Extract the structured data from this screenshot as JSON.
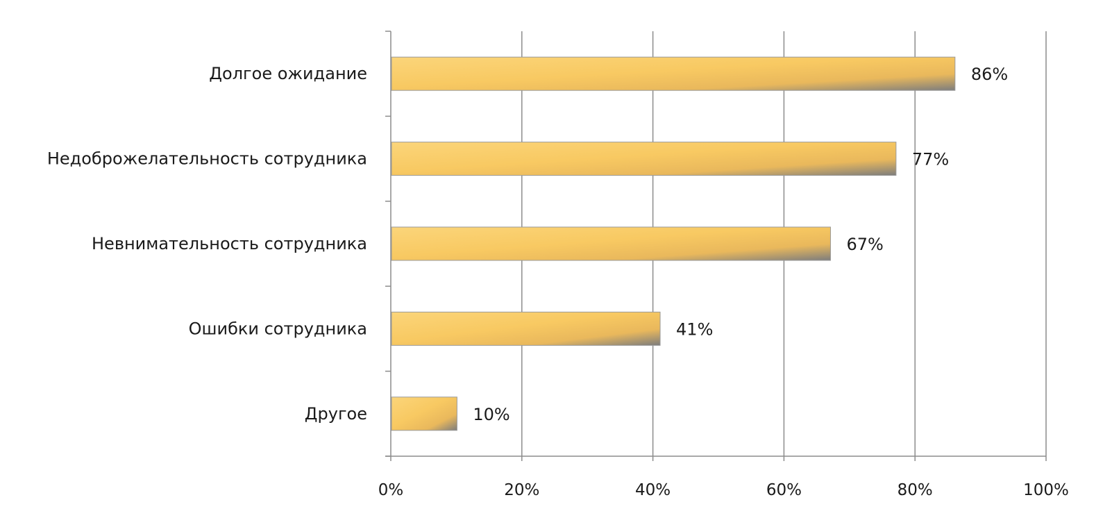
{
  "chart_data": {
    "type": "bar",
    "orientation": "horizontal",
    "categories": [
      "Долгое ожидание",
      "Недоброжелательность  сотрудника",
      "Невнимательность  сотрудника",
      "Ошибки сотрудника",
      "Другое"
    ],
    "values": [
      86,
      77,
      67,
      41,
      10
    ],
    "value_labels": [
      "86%",
      "77%",
      "67%",
      "41%",
      "10%"
    ],
    "x_ticks": [
      "0%",
      "20%",
      "40%",
      "60%",
      "80%",
      "100%"
    ],
    "xlim": [
      0,
      100
    ],
    "grid": "vertical",
    "legend": "none",
    "bar_color": "#f6c35c",
    "bar_shadow_color": "#8a8a8a"
  }
}
